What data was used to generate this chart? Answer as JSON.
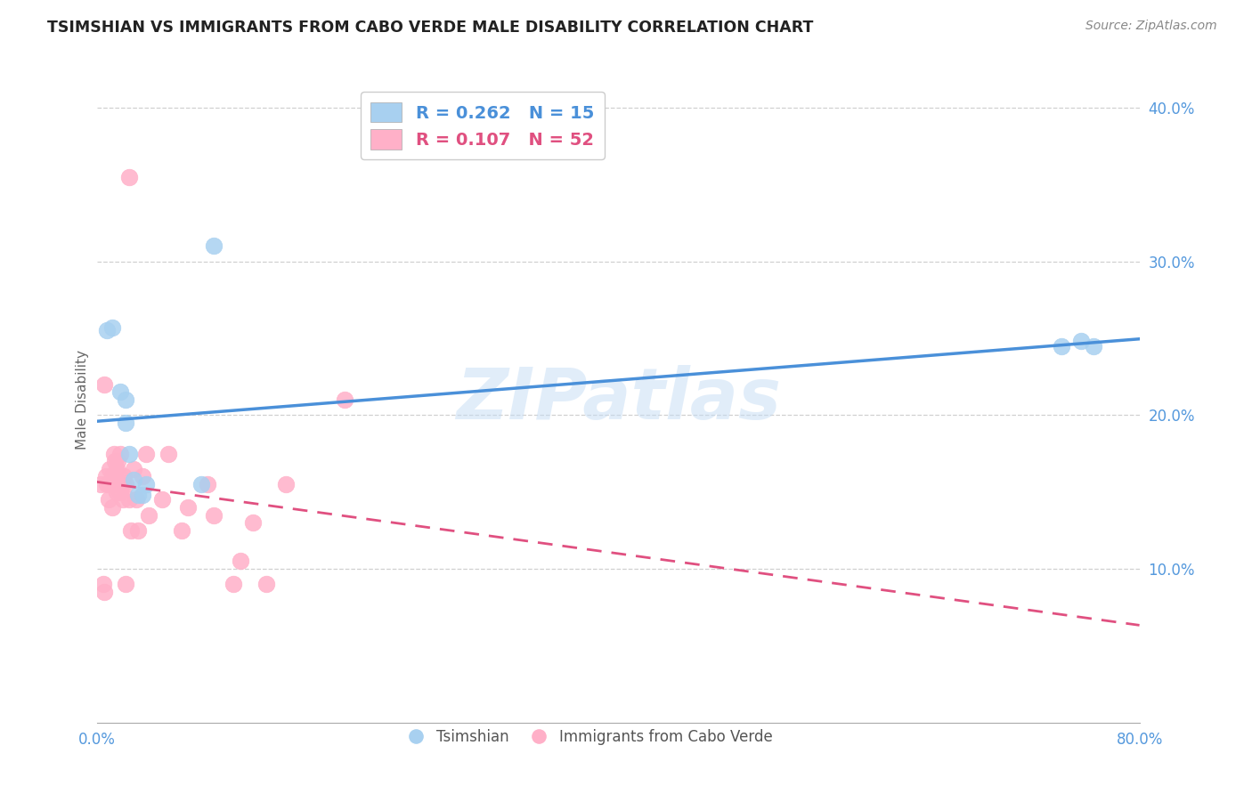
{
  "title": "TSIMSHIAN VS IMMIGRANTS FROM CABO VERDE MALE DISABILITY CORRELATION CHART",
  "source": "Source: ZipAtlas.com",
  "ylabel": "Male Disability",
  "xlim": [
    0.0,
    0.8
  ],
  "ylim": [
    0.0,
    0.42
  ],
  "xticks": [
    0.0,
    0.1,
    0.2,
    0.3,
    0.4,
    0.5,
    0.6,
    0.7,
    0.8
  ],
  "xticklabels": [
    "0.0%",
    "",
    "",
    "",
    "",
    "",
    "",
    "",
    "80.0%"
  ],
  "yticks": [
    0.1,
    0.2,
    0.3,
    0.4
  ],
  "yticklabels": [
    "10.0%",
    "20.0%",
    "30.0%",
    "40.0%"
  ],
  "grid_color": "#d0d0d0",
  "watermark": "ZIPatlas",
  "blue_color": "#a8d0f0",
  "pink_color": "#ffb0c8",
  "blue_line_color": "#4a90d9",
  "pink_line_color": "#e05080",
  "tick_color": "#5599dd",
  "legend_line1": "R = 0.262   N = 15",
  "legend_line2": "R = 0.107   N = 52",
  "tsimshian_label": "Tsimshian",
  "cabo_verde_label": "Immigrants from Cabo Verde",
  "tsimshian_x": [
    0.008,
    0.012,
    0.018,
    0.022,
    0.022,
    0.025,
    0.028,
    0.032,
    0.035,
    0.038,
    0.08,
    0.09,
    0.74,
    0.755,
    0.765
  ],
  "tsimshian_y": [
    0.255,
    0.257,
    0.215,
    0.21,
    0.195,
    0.175,
    0.158,
    0.148,
    0.148,
    0.155,
    0.155,
    0.31,
    0.245,
    0.248,
    0.245
  ],
  "cabo_verde_x": [
    0.003,
    0.005,
    0.006,
    0.007,
    0.008,
    0.009,
    0.01,
    0.01,
    0.011,
    0.012,
    0.012,
    0.013,
    0.013,
    0.014,
    0.014,
    0.015,
    0.015,
    0.016,
    0.016,
    0.017,
    0.017,
    0.018,
    0.018,
    0.018,
    0.019,
    0.02,
    0.02,
    0.021,
    0.022,
    0.022,
    0.025,
    0.026,
    0.028,
    0.03,
    0.032,
    0.035,
    0.038,
    0.04,
    0.05,
    0.055,
    0.065,
    0.07,
    0.085,
    0.09,
    0.105,
    0.11,
    0.12,
    0.13,
    0.145,
    0.19,
    0.025,
    0.006
  ],
  "cabo_verde_y": [
    0.155,
    0.09,
    0.085,
    0.16,
    0.155,
    0.145,
    0.155,
    0.165,
    0.155,
    0.14,
    0.16,
    0.155,
    0.175,
    0.155,
    0.17,
    0.15,
    0.165,
    0.155,
    0.17,
    0.155,
    0.16,
    0.15,
    0.175,
    0.155,
    0.155,
    0.155,
    0.145,
    0.16,
    0.155,
    0.09,
    0.145,
    0.125,
    0.165,
    0.145,
    0.125,
    0.16,
    0.175,
    0.135,
    0.145,
    0.175,
    0.125,
    0.14,
    0.155,
    0.135,
    0.09,
    0.105,
    0.13,
    0.09,
    0.155,
    0.21,
    0.355,
    0.22
  ]
}
